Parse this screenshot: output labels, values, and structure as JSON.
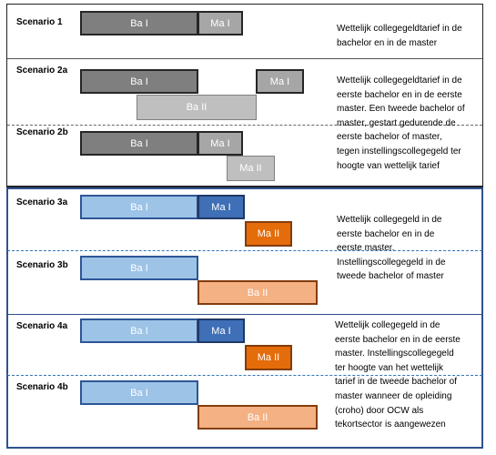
{
  "scenarios": {
    "s1": {
      "label": "Scenario 1",
      "bars": {
        "ba1": "Ba I",
        "ma1": "Ma I"
      }
    },
    "s2a": {
      "label": "Scenario 2a",
      "bars": {
        "ba1": "Ba I",
        "ma1": "Ma I",
        "ba2": "Ba II"
      }
    },
    "s2b": {
      "label": "Scenario 2b",
      "bars": {
        "ba1": "Ba I",
        "ma1": "Ma I",
        "ma2": "Ma II"
      }
    },
    "s3a": {
      "label": "Scenario 3a",
      "bars": {
        "ba1": "Ba I",
        "ma1": "Ma I",
        "ma2": "Ma II"
      }
    },
    "s3b": {
      "label": "Scenario 3b",
      "bars": {
        "ba1": "Ba I",
        "ba2": "Ba II"
      }
    },
    "s4a": {
      "label": "Scenario 4a",
      "bars": {
        "ba1": "Ba I",
        "ma1": "Ma I",
        "ma2": "Ma II"
      }
    },
    "s4b": {
      "label": "Scenario 4b",
      "bars": {
        "ba1": "Ba I",
        "ba2": "Ba II"
      }
    }
  },
  "descriptions": {
    "s1": [
      "Wettelijk collegegeldtarief in de",
      "bachelor en in de master"
    ],
    "s2": [
      "Wettelijk collegegeldtarief in de",
      "eerste bachelor en in de  eerste",
      "master. Een tweede bachelor of",
      "master, gestart gedurende de",
      "eerste bachelor of master,",
      "tegen instellingscollegegeld ter",
      "hoogte van wettelijk tarief"
    ],
    "s3": [
      "Wettelijk collegegeld in de",
      "eerste bachelor en in de",
      "eerste master.",
      "Instellingscollegegeld in de",
      "tweede bachelor of master"
    ],
    "s4": [
      "Wettelijk collegegeld in de",
      "eerste bachelor en in de eerste",
      "master. Instellingscollegegeld",
      "ter hoogte van het wettelijk",
      "tarief in de tweede bachelor of",
      "master wanneer de opleiding",
      "(croho) door OCW als",
      "tekortsector is aangewezen"
    ]
  },
  "colors": {
    "dark_grey": "#7f7f7f",
    "medium_grey": "#a6a6a6",
    "light_grey": "#bfbfbf",
    "light_blue": "#9dc3e6",
    "dark_blue": "#3e6fb7",
    "dark_orange": "#e46c0a",
    "light_orange": "#f4b183",
    "frame_black": "#222222",
    "frame_blue": "#2f528f"
  }
}
